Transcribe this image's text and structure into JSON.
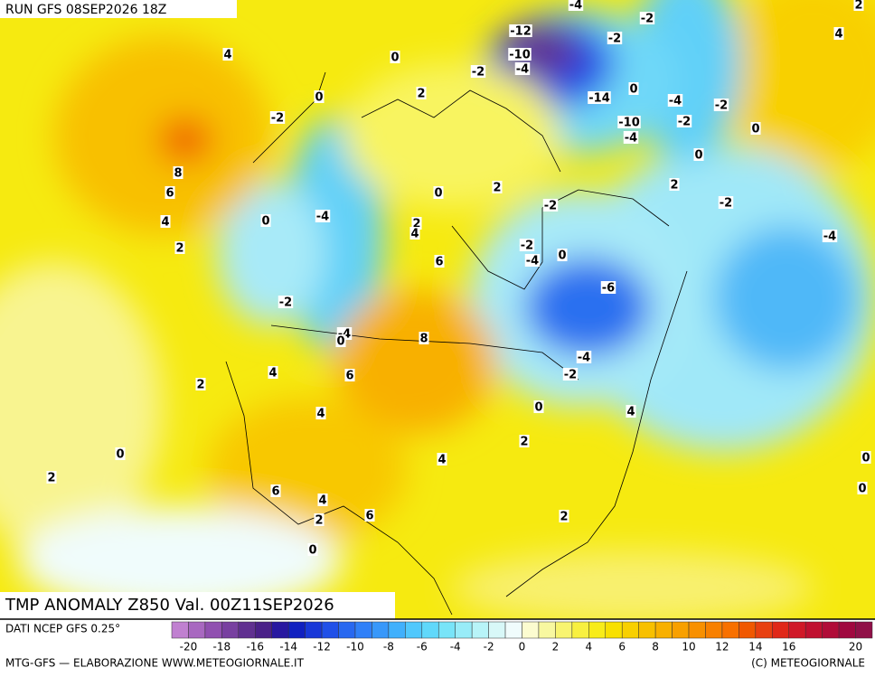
{
  "header": {
    "run": "RUN GFS 08SEP2026 18Z"
  },
  "map": {
    "title": "TMP ANOMALY Z850 Val. 00Z11SEP2026",
    "contour_labels": [
      -4,
      -2,
      2,
      4,
      -12,
      -2,
      -10,
      -4,
      -2,
      0,
      4,
      2,
      0,
      0,
      -14,
      -4,
      -2,
      -2,
      -10,
      -2,
      0,
      -4,
      0,
      8,
      6,
      0,
      2,
      2,
      -2,
      -2,
      -4,
      4,
      0,
      2,
      4,
      2,
      -2,
      0,
      -4,
      -4,
      6,
      -6,
      -2,
      -4,
      0,
      8,
      -4,
      4,
      6,
      -2,
      2,
      0,
      4,
      4,
      2,
      0,
      4,
      0,
      2,
      6,
      0,
      4,
      6,
      2,
      2,
      0
    ]
  },
  "colorbar": {
    "source": "DATI NCEP GFS 0.25°",
    "range": [
      -21,
      21
    ],
    "ticks": [
      -20,
      -18,
      -16,
      -14,
      -12,
      -10,
      -8,
      -6,
      -4,
      -2,
      0,
      2,
      4,
      6,
      8,
      10,
      12,
      14,
      16,
      20
    ],
    "colors": [
      "#c080d0",
      "#a868c0",
      "#9050b0",
      "#7840a0",
      "#603090",
      "#4a2088",
      "#2818a0",
      "#1020c0",
      "#1838d8",
      "#2050e8",
      "#2868f0",
      "#3080f8",
      "#3898fa",
      "#40b0fc",
      "#50c8fc",
      "#60d8fa",
      "#78e4f8",
      "#98ecf8",
      "#b8f4f8",
      "#d8f8f8",
      "#f0fcfc",
      "#fcfcd0",
      "#f8f8a0",
      "#f8f470",
      "#f8f040",
      "#f8ec18",
      "#f8e000",
      "#f8d000",
      "#f8c000",
      "#f8b000",
      "#f8a000",
      "#f89000",
      "#f88000",
      "#f87000",
      "#f05800",
      "#e84010",
      "#e02818",
      "#d01828",
      "#c01030",
      "#b00c38",
      "#a00840",
      "#901048"
    ]
  },
  "footer": {
    "credit_left": "MTG-GFS — ELABORAZIONE WWW.METEOGIORNALE.IT",
    "credit_right": "(C) METEOGIORNALE"
  }
}
